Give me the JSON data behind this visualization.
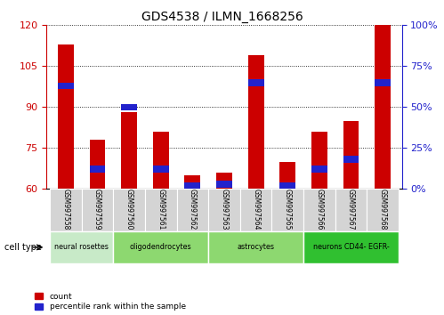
{
  "title": "GDS4538 / ILMN_1668256",
  "samples": [
    "GSM997558",
    "GSM997559",
    "GSM997560",
    "GSM997561",
    "GSM997562",
    "GSM997563",
    "GSM997564",
    "GSM997565",
    "GSM997566",
    "GSM997567",
    "GSM997568"
  ],
  "count_values": [
    113,
    78,
    88,
    81,
    65,
    66,
    109,
    70,
    81,
    85,
    120
  ],
  "percentile_values": [
    63,
    12,
    50,
    12,
    2,
    3,
    65,
    2,
    12,
    18,
    65
  ],
  "ylim_left": [
    60,
    120
  ],
  "ylim_right": [
    0,
    100
  ],
  "yticks_left": [
    60,
    75,
    90,
    105,
    120
  ],
  "yticks_right": [
    0,
    25,
    50,
    75,
    100
  ],
  "cell_types": [
    {
      "label": "neural rosettes",
      "start": 0,
      "end": 2
    },
    {
      "label": "oligodendrocytes",
      "start": 2,
      "end": 5
    },
    {
      "label": "astrocytes",
      "start": 5,
      "end": 8
    },
    {
      "label": "neurons CD44- EGFR-",
      "start": 8,
      "end": 11
    }
  ],
  "cell_type_colors": [
    "#c8eac8",
    "#8dd870",
    "#8dd870",
    "#30c030"
  ],
  "bar_width": 0.5,
  "count_color": "#cc0000",
  "percentile_color": "#2222cc",
  "grid_color": "#000000",
  "bg_color": "#ffffff",
  "left_axis_color": "#cc0000",
  "right_axis_color": "#2222cc"
}
